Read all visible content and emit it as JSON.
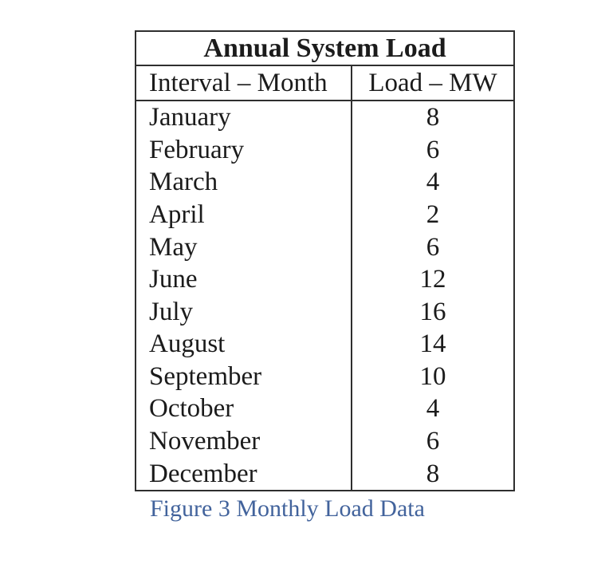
{
  "table": {
    "title": "Annual System Load",
    "columns": [
      "Interval – Month",
      "Load – MW"
    ],
    "rows": [
      {
        "month": "January",
        "load": "8"
      },
      {
        "month": "February",
        "load": "6"
      },
      {
        "month": "March",
        "load": "4"
      },
      {
        "month": "April",
        "load": "2"
      },
      {
        "month": "May",
        "load": "6"
      },
      {
        "month": "June",
        "load": "12"
      },
      {
        "month": "July",
        "load": "16"
      },
      {
        "month": "August",
        "load": "14"
      },
      {
        "month": "September",
        "load": "10"
      },
      {
        "month": "October",
        "load": "4"
      },
      {
        "month": "November",
        "load": "6"
      },
      {
        "month": "December",
        "load": "8"
      }
    ]
  },
  "caption": "Figure 3 Monthly Load Data",
  "colors": {
    "border": "#2f2f2f",
    "text": "#1b1b1b",
    "caption": "#42639c"
  }
}
